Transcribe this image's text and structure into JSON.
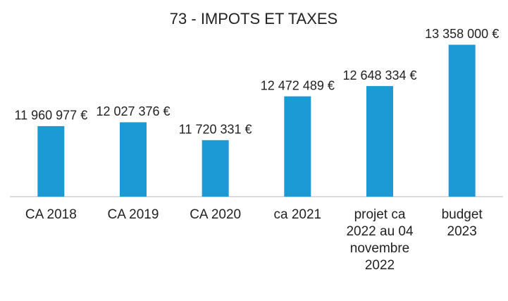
{
  "chart_data": {
    "type": "bar",
    "title": "73 - IMPOTS ET TAXES",
    "categories": [
      "CA 2018",
      "CA 2019",
      "CA 2020",
      "ca 2021",
      "projet ca 2022 au 04 novembre 2022",
      "budget 2023"
    ],
    "values": [
      11960977,
      12027376,
      11720331,
      12472489,
      12648334,
      13358000
    ],
    "value_labels": [
      "11 960 977 €",
      "12 027 376 €",
      "11 720 331 €",
      "12 472 489 €",
      "12 648 334 €",
      "13 358 000 €"
    ],
    "color": "#1b9ad6",
    "ylim": [
      10750000,
      13400000
    ]
  }
}
